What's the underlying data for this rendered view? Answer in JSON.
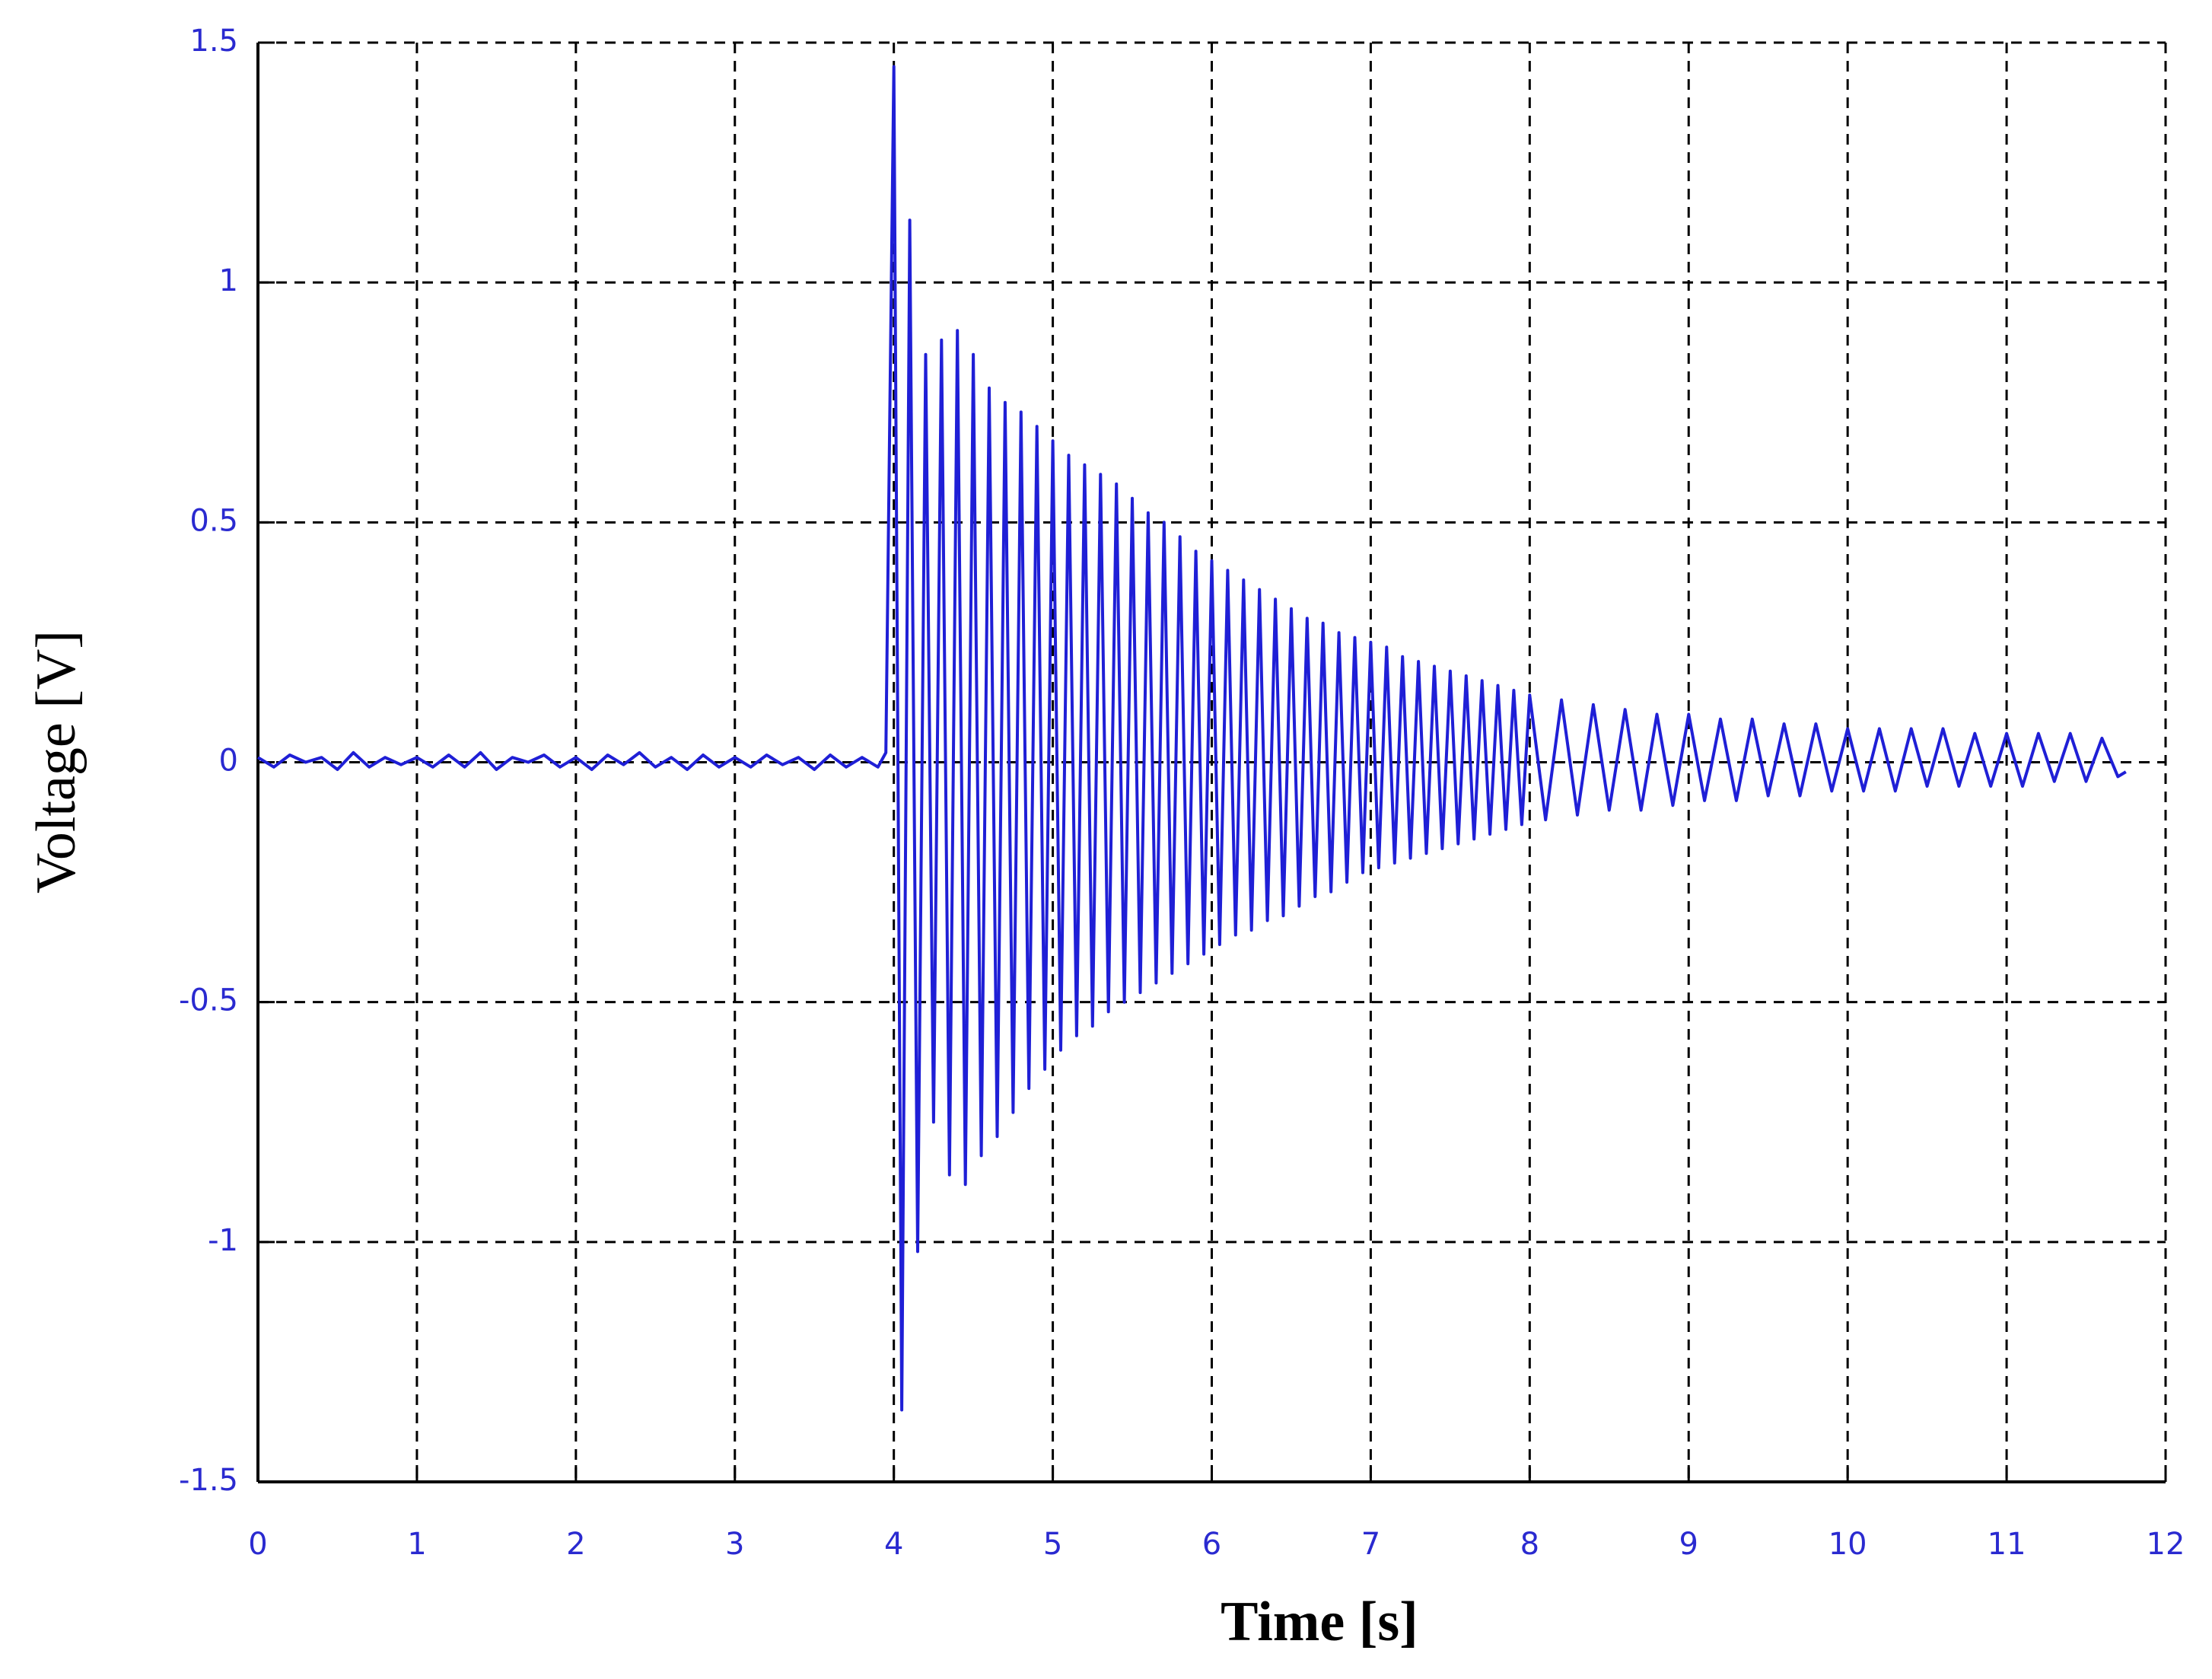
{
  "chart_data": {
    "type": "line",
    "xlabel": "Time [s]",
    "ylabel": "Voltage [V]",
    "xlim": [
      0,
      12
    ],
    "ylim": [
      -1.5,
      1.5
    ],
    "xticks": [
      0,
      1,
      2,
      3,
      4,
      5,
      6,
      7,
      8,
      9,
      10,
      11,
      12
    ],
    "yticks": [
      -1.5,
      -1,
      -0.5,
      0,
      0.5,
      1,
      1.5
    ],
    "grid": true,
    "series": [
      {
        "color": "#1f1fd6",
        "x": [
          0,
          0.1,
          0.2,
          0.3,
          0.4,
          0.5,
          0.6,
          0.7,
          0.8,
          0.9,
          1,
          1.1,
          1.2,
          1.3,
          1.4,
          1.5,
          1.6,
          1.7,
          1.8,
          1.9,
          2,
          2.1,
          2.2,
          2.3,
          2.4,
          2.5,
          2.6,
          2.7,
          2.8,
          2.9,
          3,
          3.1,
          3.2,
          3.3,
          3.4,
          3.5,
          3.6,
          3.7,
          3.8,
          3.9,
          3.95,
          4,
          4.05,
          4.1,
          4.15,
          4.2,
          4.25,
          4.3,
          4.35,
          4.4,
          4.45,
          4.5,
          4.55,
          4.6,
          4.65,
          4.7,
          4.75,
          4.8,
          4.85,
          4.9,
          4.95,
          5,
          5.05,
          5.1,
          5.15,
          5.2,
          5.25,
          5.3,
          5.35,
          5.4,
          5.45,
          5.5,
          5.55,
          5.6,
          5.65,
          5.7,
          5.75,
          5.8,
          5.85,
          5.9,
          5.95,
          6,
          6.05,
          6.1,
          6.15,
          6.2,
          6.25,
          6.3,
          6.35,
          6.4,
          6.45,
          6.5,
          6.55,
          6.6,
          6.65,
          6.7,
          6.75,
          6.8,
          6.85,
          6.9,
          6.95,
          7,
          7.05,
          7.1,
          7.15,
          7.2,
          7.25,
          7.3,
          7.35,
          7.4,
          7.45,
          7.5,
          7.55,
          7.6,
          7.65,
          7.7,
          7.75,
          7.8,
          7.85,
          7.9,
          7.95,
          8,
          8.1,
          8.2,
          8.3,
          8.4,
          8.5,
          8.6,
          8.7,
          8.8,
          8.9,
          9,
          9.1,
          9.2,
          9.3,
          9.4,
          9.5,
          9.6,
          9.7,
          9.8,
          9.9,
          10,
          10.1,
          10.2,
          10.3,
          10.4,
          10.5,
          10.6,
          10.7,
          10.8,
          10.9,
          11,
          11.1,
          11.2,
          11.3,
          11.4,
          11.5,
          11.6,
          11.7,
          11.75
        ],
        "values": [
          0.01,
          -0.01,
          0.015,
          0,
          0.01,
          -0.015,
          0.02,
          -0.01,
          0.01,
          -0.005,
          0.01,
          -0.01,
          0.015,
          -0.01,
          0.02,
          -0.015,
          0.01,
          0,
          0.015,
          -0.01,
          0.01,
          -0.015,
          0.015,
          -0.005,
          0.02,
          -0.01,
          0.01,
          -0.015,
          0.015,
          -0.01,
          0.01,
          -0.01,
          0.015,
          -0.005,
          0.01,
          -0.015,
          0.015,
          -0.01,
          0.01,
          -0.01,
          0.02,
          1.45,
          -1.35,
          1.13,
          -1.02,
          0.85,
          -0.75,
          0.88,
          -0.86,
          0.9,
          -0.88,
          0.85,
          -0.82,
          0.78,
          -0.78,
          0.75,
          -0.73,
          0.73,
          -0.68,
          0.7,
          -0.64,
          0.67,
          -0.6,
          0.64,
          -0.57,
          0.62,
          -0.55,
          0.6,
          -0.52,
          0.58,
          -0.5,
          0.55,
          -0.48,
          0.52,
          -0.46,
          0.5,
          -0.44,
          0.47,
          -0.42,
          0.44,
          -0.4,
          0.42,
          -0.38,
          0.4,
          -0.36,
          0.38,
          -0.35,
          0.36,
          -0.33,
          0.34,
          -0.32,
          0.32,
          -0.3,
          0.3,
          -0.28,
          0.29,
          -0.27,
          0.27,
          -0.25,
          0.26,
          -0.23,
          0.25,
          -0.22,
          0.24,
          -0.21,
          0.22,
          -0.2,
          0.21,
          -0.19,
          0.2,
          -0.18,
          0.19,
          -0.17,
          0.18,
          -0.16,
          0.17,
          -0.15,
          0.16,
          -0.14,
          0.15,
          -0.13,
          0.14,
          -0.12,
          0.13,
          -0.11,
          0.12,
          -0.1,
          0.11,
          -0.1,
          0.1,
          -0.09,
          0.1,
          -0.08,
          0.09,
          -0.08,
          0.09,
          -0.07,
          0.08,
          -0.07,
          0.08,
          -0.06,
          0.07,
          -0.06,
          0.07,
          -0.06,
          0.07,
          -0.05,
          0.07,
          -0.05,
          0.06,
          -0.05,
          0.06,
          -0.05,
          0.06,
          -0.04,
          0.06,
          -0.04,
          0.05,
          -0.03,
          -0.02
        ]
      }
    ]
  }
}
